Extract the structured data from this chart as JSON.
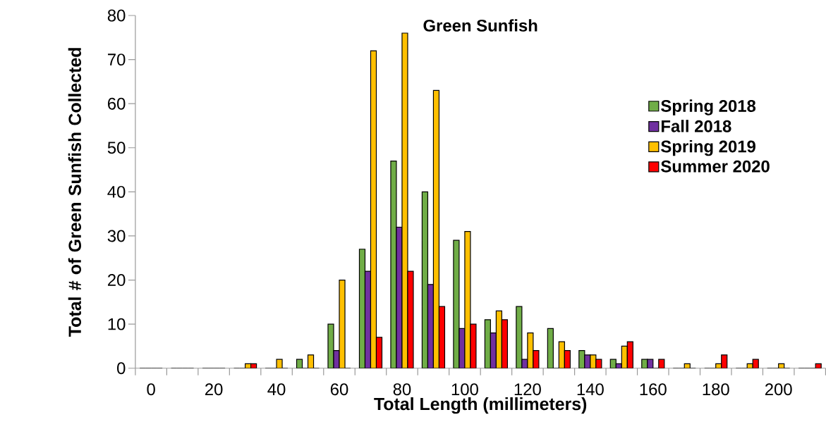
{
  "chart_data": {
    "type": "bar",
    "title": "Green Sunfish",
    "xlabel": "Total Length (millimeters)",
    "ylabel": "Total # of Green Sunfish Collected",
    "categories": [
      "0",
      null,
      "20",
      null,
      "40",
      null,
      "60",
      null,
      "80",
      null,
      "100",
      null,
      "120",
      null,
      "140",
      null,
      "160",
      null,
      "180",
      null,
      "200",
      null
    ],
    "series": [
      {
        "name": "Spring 2018",
        "color": "#70ad47",
        "values": [
          0,
          0,
          0,
          0,
          0,
          2,
          10,
          27,
          47,
          40,
          29,
          11,
          14,
          9,
          4,
          2,
          2,
          0,
          0,
          0,
          0,
          0
        ]
      },
      {
        "name": "Fall 2018",
        "color": "#7030a0",
        "values": [
          0,
          0,
          0,
          0,
          0,
          0,
          4,
          22,
          32,
          19,
          9,
          8,
          2,
          0,
          3,
          1,
          2,
          0,
          0,
          0,
          0,
          0
        ]
      },
      {
        "name": "Spring 2019",
        "color": "#ffc000",
        "values": [
          0,
          0,
          0,
          1,
          2,
          3,
          20,
          72,
          76,
          63,
          31,
          13,
          8,
          6,
          3,
          5,
          0,
          1,
          1,
          1,
          1,
          0
        ]
      },
      {
        "name": "Summer 2020",
        "color": "#ff0000",
        "values": [
          0,
          0,
          0,
          1,
          0,
          0,
          0,
          7,
          22,
          14,
          10,
          11,
          4,
          4,
          2,
          6,
          2,
          0,
          3,
          2,
          0,
          1
        ]
      }
    ],
    "ylim": [
      0,
      80
    ],
    "yticks": [
      0,
      10,
      20,
      30,
      40,
      50,
      60,
      70,
      80
    ],
    "legend": "right"
  }
}
